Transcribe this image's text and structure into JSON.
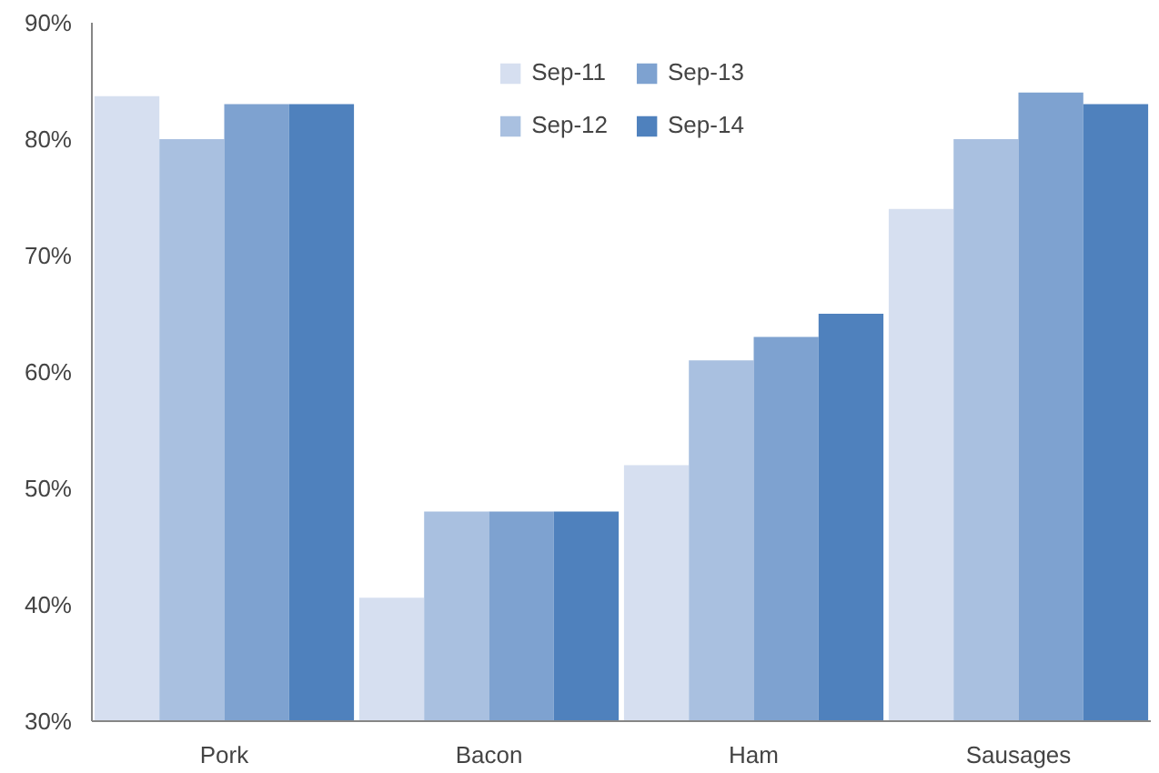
{
  "chart_data": {
    "type": "bar",
    "categories": [
      "Pork",
      "Bacon",
      "Ham",
      "Sausages"
    ],
    "series": [
      {
        "name": "Sep-11",
        "color": "#d6dff0",
        "values": [
          83.7,
          40.6,
          52,
          74
        ]
      },
      {
        "name": "Sep-12",
        "color": "#a9c0e0",
        "values": [
          80,
          48,
          61,
          80
        ]
      },
      {
        "name": "Sep-13",
        "color": "#7ea2d0",
        "values": [
          83,
          48,
          63,
          84
        ]
      },
      {
        "name": "Sep-14",
        "color": "#4f81bd",
        "values": [
          83,
          48,
          65,
          83
        ]
      }
    ],
    "ylim": [
      30,
      90
    ],
    "yticks": [
      {
        "value": 30,
        "label": "30%"
      },
      {
        "value": 40,
        "label": "40%"
      },
      {
        "value": 50,
        "label": "50%"
      },
      {
        "value": 60,
        "label": "60%"
      },
      {
        "value": 70,
        "label": "70%"
      },
      {
        "value": 80,
        "label": "80%"
      },
      {
        "value": 90,
        "label": "90%"
      }
    ],
    "grid": false,
    "legend": "top"
  }
}
